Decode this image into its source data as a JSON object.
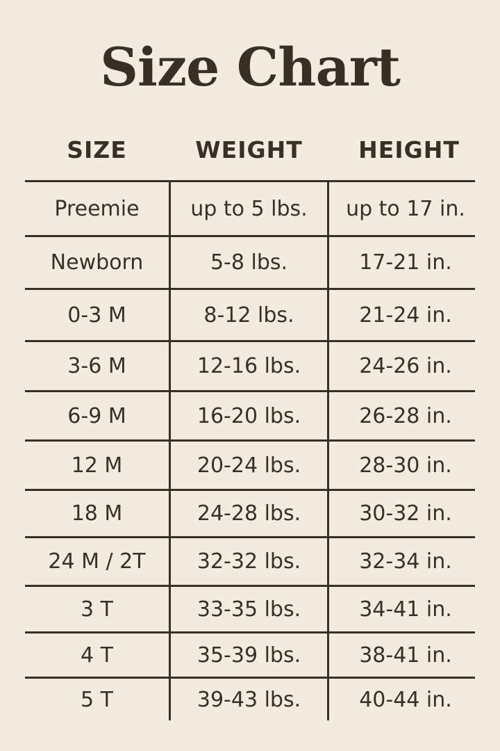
{
  "title": "Size Chart",
  "headers": [
    "SIZE",
    "WEIGHT",
    "HEIGHT"
  ],
  "rows": [
    [
      "Preemie",
      "up to 5 lbs.",
      "up to 17 in."
    ],
    [
      "Newborn",
      "5-8 lbs.",
      "17-21 in."
    ],
    [
      "0-3 M",
      "8-12 lbs.",
      "21-24 in."
    ],
    [
      "3-6 M",
      "12-16 lbs.",
      "24-26 in."
    ],
    [
      "6-9 M",
      "16-20 lbs.",
      "26-28 in."
    ],
    [
      "12 M",
      "20-24 lbs.",
      "28-30 in."
    ],
    [
      "18 M",
      "24-28 lbs.",
      "30-32 in."
    ],
    [
      "24 M / 2T",
      "32-32 lbs.",
      "32-34 in."
    ],
    [
      "3 T",
      "33-35 lbs.",
      "34-41 in."
    ],
    [
      "4 T",
      "35-39 lbs.",
      "38-41 in."
    ],
    [
      "5 T",
      "39-43 lbs.",
      "40-44 in."
    ]
  ],
  "colors": {
    "background": "#f3ebe0",
    "text": "#3b2e25"
  }
}
